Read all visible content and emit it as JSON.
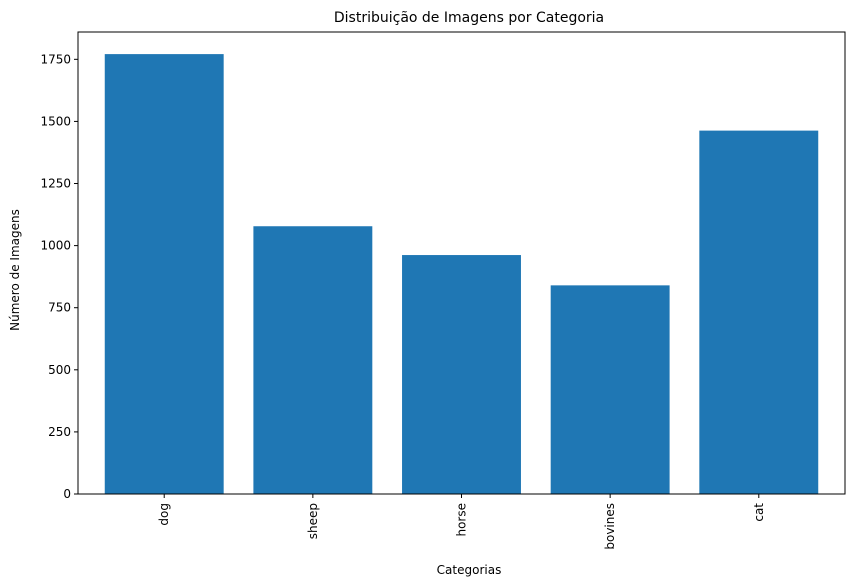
{
  "chart_data": {
    "type": "bar",
    "title": "Distribuição de Imagens por Categoria",
    "xlabel": "Categorias",
    "ylabel": "Número de Imagens",
    "categories": [
      "dog",
      "sheep",
      "horse",
      "bovines",
      "cat"
    ],
    "values": [
      1771,
      1078,
      962,
      840,
      1463
    ],
    "ylim": [
      0,
      1860
    ],
    "yticks": [
      0,
      250,
      500,
      750,
      1000,
      1250,
      1500,
      1750
    ],
    "grid": false,
    "bar_color": "#1f77b4"
  }
}
